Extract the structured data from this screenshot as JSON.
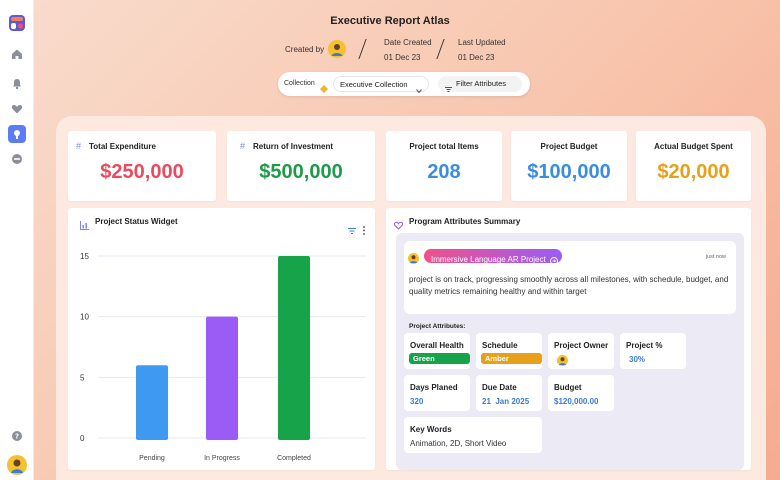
{
  "header": {
    "title": "Executive Report Atlas",
    "created_by_label": "Created by",
    "date_created_label": "Date Created",
    "date_created_value": "01 Dec 23",
    "last_updated_label": "Last Updated",
    "last_updated_value": "01 Dec 23"
  },
  "filterbar": {
    "collection_label": "Collection",
    "collection_value": "Executive Collection",
    "filter_button": "Filter Attributes"
  },
  "kpis": [
    {
      "title": "Total Expenditure",
      "value": "$250,000",
      "color": "#e94a5e"
    },
    {
      "title": "Return of Investment",
      "value": "$500,000",
      "color": "#1e9b48"
    },
    {
      "title": "Project total Items",
      "value": "208",
      "color": "#3a8de0"
    },
    {
      "title": "Project Budget",
      "value": "$100,000",
      "color": "#3a8de0"
    },
    {
      "title": "Actual Budget Spent",
      "value": "$20,000",
      "color": "#e7a01a"
    }
  ],
  "status_widget": {
    "title": "Project Status Widget"
  },
  "chart_data": {
    "type": "bar",
    "categories": [
      "Pending",
      "In Progress",
      "Completed"
    ],
    "values": [
      6,
      10,
      15
    ],
    "colors": [
      "#3e9af0",
      "#9b5cf5",
      "#16a34a"
    ],
    "yticks": [
      0,
      5,
      10,
      15
    ],
    "ylim": [
      0,
      15
    ],
    "grid": true
  },
  "summary": {
    "title": "Program Attributes Summary",
    "project_name": "Immersive Language AR Project",
    "time": "just now",
    "description": "project is on track, progressing smoothly across all milestones, with schedule, budget, and quality metrics remaining healthy and within target",
    "attributes_heading": "Project Attributes:",
    "overall_health_label": "Overall Health",
    "overall_health_value": "Green",
    "schedule_label": "Schedule",
    "schedule_value": "Amber",
    "owner_label": "Project Owner",
    "percent_label": "Project %",
    "percent_value": "30%",
    "days_label": "Days Planed",
    "days_value": "320",
    "due_label": "Due Date",
    "due_value": "21  Jan 2025",
    "budget_label": "Budget",
    "budget_value": "$120,000.00",
    "keywords_label": "Key Words",
    "keywords_value": "Animation, 2D, Short Video"
  }
}
